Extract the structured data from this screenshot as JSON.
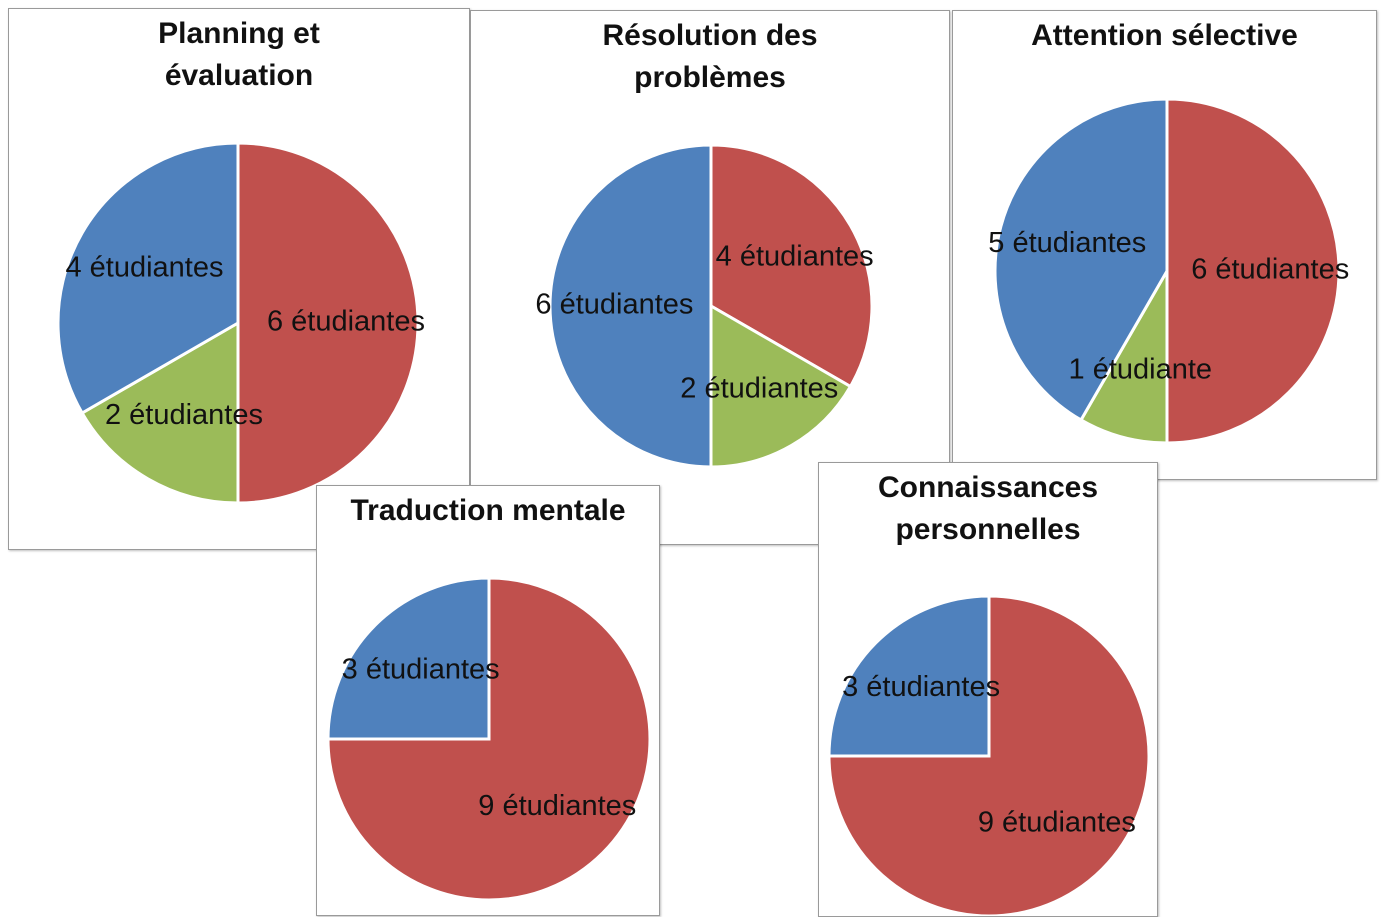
{
  "chart_data": [
    {
      "type": "pie",
      "title": "Planning et évaluation",
      "values": [
        6,
        2,
        4
      ],
      "value_labels": [
        "6 étudiantes",
        "2 étudiantes",
        "4 étudiantes"
      ],
      "colors": [
        "#c0504d",
        "#9bbb59",
        "#4f81bd"
      ]
    },
    {
      "type": "pie",
      "title": "Résolution des problèmes",
      "values": [
        4,
        2,
        6
      ],
      "value_labels": [
        "4 étudiantes",
        "2 étudiantes",
        "6 étudiantes"
      ],
      "colors": [
        "#c0504d",
        "#9bbb59",
        "#4f81bd"
      ]
    },
    {
      "type": "pie",
      "title": "Attention sélective",
      "values": [
        6,
        1,
        5
      ],
      "value_labels": [
        "6 étudiantes",
        "1 étudiante",
        "5 étudiantes"
      ],
      "colors": [
        "#c0504d",
        "#9bbb59",
        "#4f81bd"
      ]
    },
    {
      "type": "pie",
      "title": "Traduction mentale",
      "values": [
        9,
        3
      ],
      "value_labels": [
        "9 étudiantes",
        "3 étudiantes"
      ],
      "colors": [
        "#c0504d",
        "#4f81bd"
      ]
    },
    {
      "type": "pie",
      "title": "Connaissances personnelles",
      "values": [
        9,
        3
      ],
      "value_labels": [
        "9 étudiantes",
        "3 étudiantes"
      ],
      "colors": [
        "#c0504d",
        "#4f81bd"
      ]
    }
  ]
}
